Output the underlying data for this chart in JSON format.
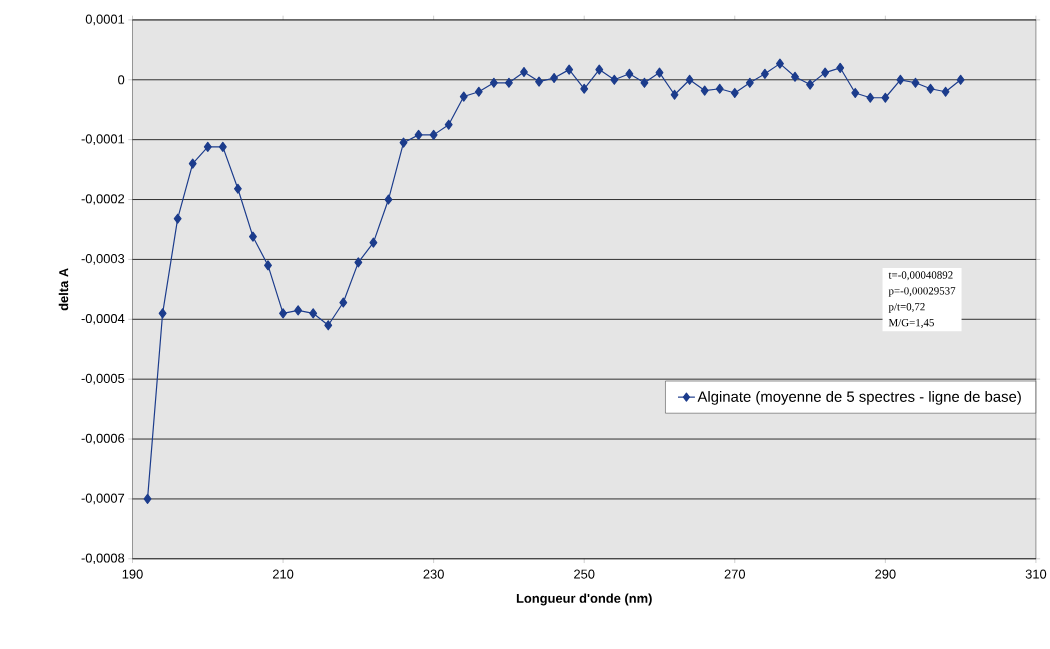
{
  "chart_data": {
    "type": "line",
    "xlabel": "Longueur d'onde (nm)",
    "ylabel": "delta A",
    "x": [
      192,
      194,
      196,
      198,
      200,
      202,
      204,
      206,
      208,
      210,
      212,
      214,
      216,
      218,
      220,
      222,
      224,
      226,
      228,
      230,
      232,
      234,
      236,
      238,
      240,
      242,
      244,
      246,
      248,
      250,
      252,
      254,
      256,
      258,
      260,
      262,
      264,
      266,
      268,
      270,
      272,
      274,
      276,
      278,
      280,
      282,
      284,
      286,
      288,
      290,
      292,
      294,
      296,
      298,
      300
    ],
    "series": [
      {
        "name": "Alginate (moyenne de 5 spectres - ligne de base)",
        "color": "#1c3c8c",
        "values": [
          -0.0007,
          -0.00039,
          -0.000232,
          -0.00014,
          -0.000112,
          -0.000112,
          -0.000182,
          -0.000262,
          -0.00031,
          -0.00039,
          -0.000385,
          -0.00039,
          -0.00041,
          -0.000372,
          -0.000305,
          -0.000272,
          -0.0002,
          -0.000105,
          -9.2e-05,
          -9.2e-05,
          -7.5e-05,
          -2.8e-05,
          -2e-05,
          -5e-06,
          -5e-06,
          1.3e-05,
          -3e-06,
          3e-06,
          1.7e-05,
          -1.5e-05,
          1.7e-05,
          0,
          1e-05,
          -5e-06,
          1.2e-05,
          -2.5e-05,
          0,
          -1.8e-05,
          -1.5e-05,
          -2.2e-05,
          -5e-06,
          1e-05,
          2.7e-05,
          5e-06,
          -8e-06,
          1.2e-05,
          2e-05,
          -2.2e-05,
          -3e-05,
          -3e-05,
          0,
          -5e-06,
          -1.5e-05,
          -2e-05,
          0
        ]
      }
    ],
    "xlim": [
      190,
      310
    ],
    "xticks": [
      190,
      210,
      230,
      250,
      270,
      290,
      310
    ],
    "ylim": [
      -0.0008,
      0.0001
    ],
    "yticks": [
      {
        "value": -0.0008,
        "label": "-0,0008"
      },
      {
        "value": -0.0007,
        "label": "-0,0007"
      },
      {
        "value": -0.0006,
        "label": "-0,0006"
      },
      {
        "value": -0.0005,
        "label": "-0,0005"
      },
      {
        "value": -0.0004,
        "label": "-0,0004"
      },
      {
        "value": -0.0003,
        "label": "-0,0003"
      },
      {
        "value": -0.0002,
        "label": "-0,0002"
      },
      {
        "value": -0.0001,
        "label": "-0,0001"
      },
      {
        "value": 0,
        "label": "0"
      },
      {
        "value": 0.0001,
        "label": "0,0001"
      }
    ],
    "grid": "y",
    "legend": "right",
    "marker": "diamond",
    "line_style": "solid",
    "annotations": [
      "t=-0,00040892",
      "p=-0,00029537",
      "p/t=0,72",
      "M/G=1,45"
    ]
  }
}
